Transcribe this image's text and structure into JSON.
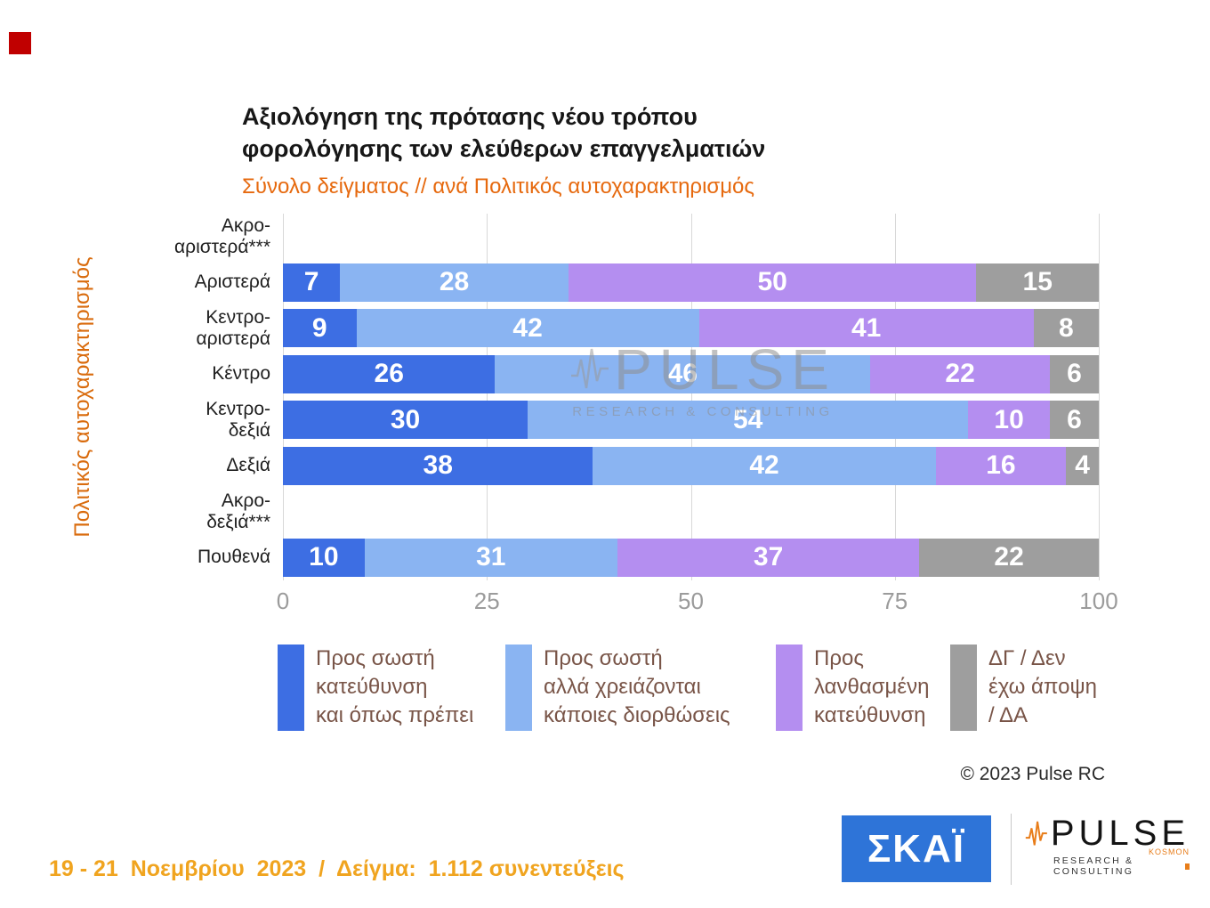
{
  "slide": {
    "title_line1": "Αξιολόγηση της πρότασης νέου τρόπου",
    "title_line2": "φορολόγησης των ελεύθερων επαγγελματιών",
    "subtitle": "Σύνολο δείγματος // ανά Πολιτικός αυτοχαρακτηρισμός",
    "footer_date": "19 - 21  Νοεμβρίου  2023  /  Δείγμα:  1.112 συνεντεύξεις",
    "copyright": "© 2023 Pulse RC"
  },
  "watermark": {
    "brand": "PULSE",
    "tagline": "RESEARCH & CONSULTING"
  },
  "logos": {
    "skai": "ΣΚΑΪ",
    "pulse_brand": "PULSE",
    "pulse_tagline": "RESEARCH & CONSULTING",
    "pulse_small": "KOSMON"
  },
  "colors": {
    "series_right_direction": "#3d6ee3",
    "series_right_needs_fixes": "#8ab4f2",
    "series_wrong_direction": "#b48ef0",
    "series_dk_na": "#9e9e9e",
    "subtitle_orange": "#e6690e",
    "axis_label_orange": "#d96b0d",
    "footer_gold": "#f0a41f",
    "skai_blue": "#2e74d8",
    "pulse_orange": "#e87d1a",
    "accent_red": "#c00000"
  },
  "chart_data": {
    "type": "bar",
    "orientation": "horizontal",
    "stacked": true,
    "title": "Αξιολόγηση της πρότασης νέου τρόπου φορολόγησης των ελεύθερων επαγγελματιών",
    "subtitle": "Σύνολο δείγματος // ανά Πολιτικός αυτοχαρακτηρισμός",
    "y_axis_label": "Πολιτικός αυτοχαρακτηρισμός",
    "xlim": [
      0,
      100
    ],
    "x_ticks": [
      0,
      25,
      50,
      75,
      100
    ],
    "grid": true,
    "legend_position": "bottom",
    "categories": [
      "Ακρο-\nαριστερά***",
      "Αριστερά",
      "Κεντρο-\nαριστερά",
      "Κέντρο",
      "Κεντρο-\nδεξιά",
      "Δεξιά",
      "Ακρο-\nδεξιά***",
      "Πουθενά"
    ],
    "series": [
      {
        "name": "Προς σωστή κατεύθυνση και όπως πρέπει",
        "color": "#3d6ee3",
        "values": [
          null,
          7,
          9,
          26,
          30,
          38,
          null,
          10
        ]
      },
      {
        "name": "Προς σωστή αλλά χρειάζονται κάποιες διορθώσεις",
        "color": "#8ab4f2",
        "values": [
          null,
          28,
          42,
          46,
          54,
          42,
          null,
          31
        ]
      },
      {
        "name": "Προς λανθασμένη κατεύθυνση",
        "color": "#b48ef0",
        "values": [
          null,
          50,
          41,
          22,
          10,
          16,
          null,
          37
        ]
      },
      {
        "name": "ΔΓ / Δεν έχω άποψη / ΔΑ",
        "color": "#9e9e9e",
        "values": [
          null,
          15,
          8,
          6,
          6,
          4,
          null,
          22
        ]
      }
    ],
    "legend": [
      {
        "label": "Προς σωστή\nκατεύθυνση\nκαι όπως πρέπει",
        "color": "#3d6ee3"
      },
      {
        "label": "Προς σωστή\nαλλά χρειάζονται\nκάποιες διορθώσεις",
        "color": "#8ab4f2"
      },
      {
        "label": "Προς\nλανθασμένη\nκατεύθυνση",
        "color": "#b48ef0"
      },
      {
        "label": "ΔΓ / Δεν\nέχω άποψη\n/ ΔΑ",
        "color": "#9e9e9e"
      }
    ]
  }
}
